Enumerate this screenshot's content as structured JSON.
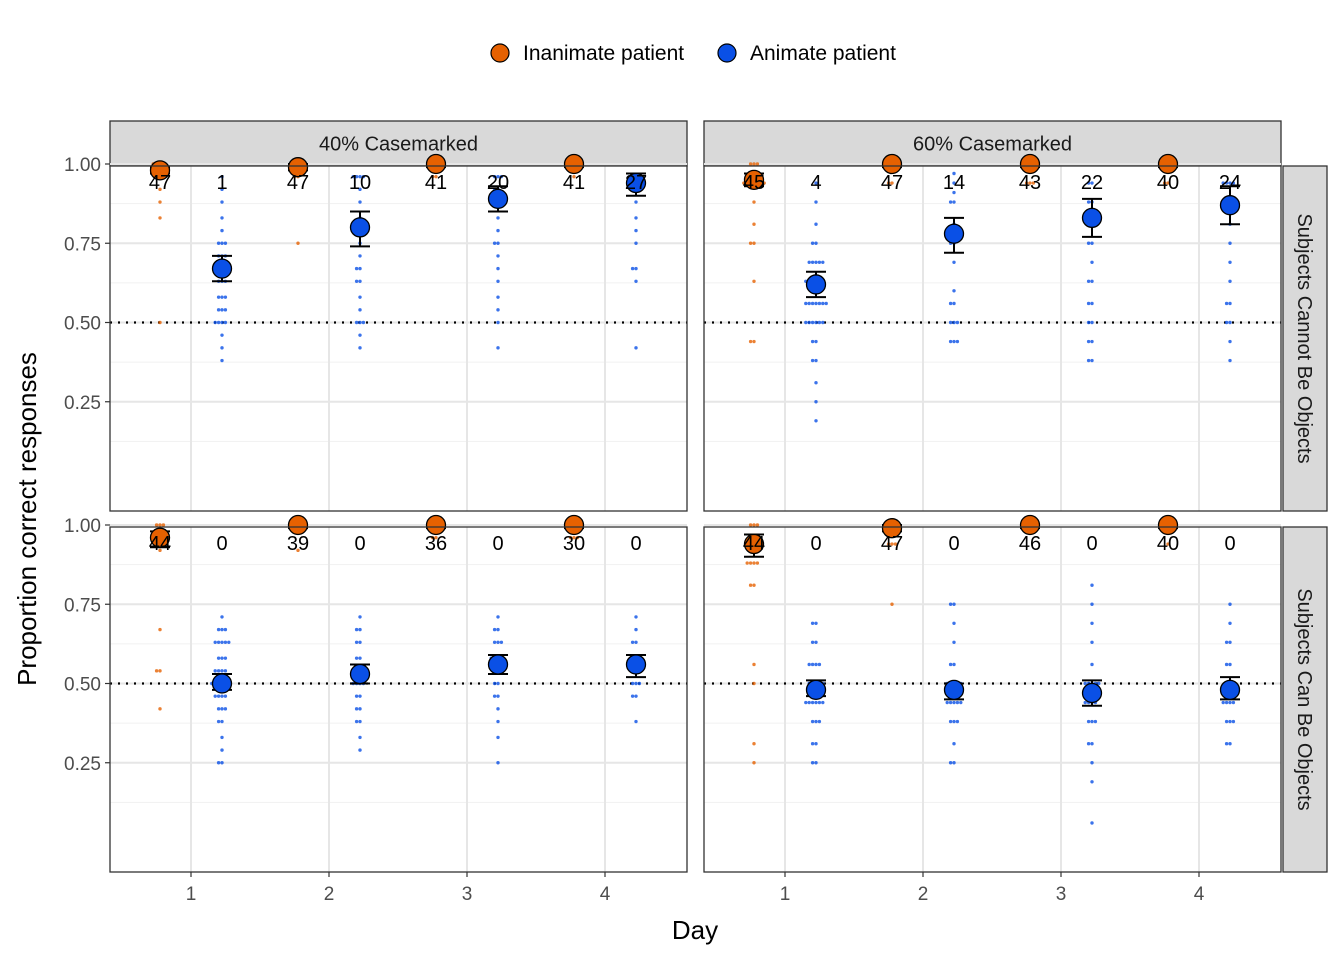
{
  "chart_data": {
    "type": "scatter",
    "title": "",
    "xlabel": "Day",
    "ylabel": "Proportion correct responses",
    "x_ticks": [
      "1",
      "2",
      "3",
      "4"
    ],
    "y_ticks": [
      "0.25",
      "0.50",
      "0.75",
      "1.00"
    ],
    "ylim": [
      0.0,
      1.12
    ],
    "reference_line": 0.5,
    "grid": true,
    "legend_position": "top",
    "legend": [
      {
        "name": "Inanimate patient",
        "color": "#E66101"
      },
      {
        "name": "Animate patient",
        "color": "#0A50E6"
      }
    ],
    "col_facets": [
      "40% Casemarked",
      "60% Casemarked"
    ],
    "row_facets": [
      "Subjects Cannot Be Objects",
      "Subjects Can Be Objects"
    ],
    "panels": [
      {
        "col": 0,
        "row": 0,
        "days": [
          {
            "day": 1,
            "inanimate": {
              "mean": 0.98,
              "lo": 0.97,
              "hi": 0.99,
              "count": "47",
              "points": [
                1.0,
                1.0,
                1.0,
                1.0,
                0.96,
                0.96,
                0.96,
                0.92,
                0.88,
                0.83,
                0.5
              ]
            },
            "animate": {
              "mean": 0.67,
              "lo": 0.63,
              "hi": 0.71,
              "count": "1",
              "points": [
                0.96,
                0.92,
                0.88,
                0.83,
                0.79,
                0.75,
                0.75,
                0.75,
                0.71,
                0.71,
                0.71,
                0.67,
                0.67,
                0.67,
                0.67,
                0.63,
                0.63,
                0.63,
                0.58,
                0.58,
                0.58,
                0.54,
                0.54,
                0.54,
                0.5,
                0.5,
                0.5,
                0.5,
                0.46,
                0.42,
                0.38
              ]
            }
          },
          {
            "day": 2,
            "inanimate": {
              "mean": 0.99,
              "lo": 0.98,
              "hi": 1.0,
              "count": "47",
              "points": [
                1.0,
                1.0,
                1.0,
                1.0,
                0.96,
                0.96,
                0.75
              ]
            },
            "animate": {
              "mean": 0.8,
              "lo": 0.74,
              "hi": 0.85,
              "count": "10",
              "points": [
                0.96,
                0.96,
                0.96,
                0.96,
                0.92,
                0.88,
                0.83,
                0.79,
                0.75,
                0.71,
                0.67,
                0.67,
                0.63,
                0.63,
                0.58,
                0.54,
                0.5,
                0.5,
                0.5,
                0.46,
                0.42
              ]
            }
          },
          {
            "day": 3,
            "inanimate": {
              "mean": 1.0,
              "lo": 0.99,
              "hi": 1.0,
              "count": "41",
              "points": [
                1.0,
                1.0,
                1.0,
                1.0,
                0.96,
                0.96
              ]
            },
            "animate": {
              "mean": 0.89,
              "lo": 0.85,
              "hi": 0.93,
              "count": "20",
              "points": [
                0.96,
                0.96,
                0.96,
                0.92,
                0.92,
                0.88,
                0.88,
                0.83,
                0.79,
                0.75,
                0.75,
                0.71,
                0.67,
                0.63,
                0.58,
                0.54,
                0.5,
                0.42
              ]
            }
          },
          {
            "day": 4,
            "inanimate": {
              "mean": 1.0,
              "lo": 0.99,
              "hi": 1.0,
              "count": "41",
              "points": [
                1.0,
                1.0,
                1.0,
                0.96
              ]
            },
            "animate": {
              "mean": 0.94,
              "lo": 0.9,
              "hi": 0.97,
              "count": "27",
              "points": [
                0.96,
                0.96,
                0.96,
                0.96,
                0.92,
                0.92,
                0.88,
                0.83,
                0.79,
                0.75,
                0.67,
                0.67,
                0.63,
                0.42
              ]
            }
          }
        ]
      },
      {
        "col": 1,
        "row": 0,
        "days": [
          {
            "day": 1,
            "inanimate": {
              "mean": 0.95,
              "lo": 0.93,
              "hi": 0.97,
              "count": "45",
              "points": [
                1.0,
                1.0,
                1.0,
                0.94,
                0.94,
                0.94,
                0.94,
                0.94,
                0.94,
                0.94,
                0.88,
                0.81,
                0.75,
                0.75,
                0.63,
                0.44,
                0.44
              ]
            }
          },
          {
            "day": 2,
            "inanimate": {
              "mean": 1.0,
              "lo": 0.99,
              "hi": 1.0,
              "count": "47",
              "points": [
                1.0,
                1.0,
                1.0,
                0.94,
                0.94
              ]
            },
            "animate": {
              "mean": 0.78,
              "lo": 0.72,
              "hi": 0.83,
              "count": "14",
              "points": [
                0.97,
                0.94,
                0.91,
                0.88,
                0.88,
                0.81,
                0.75,
                0.75,
                0.69,
                0.6,
                0.56,
                0.56,
                0.5,
                0.5,
                0.5,
                0.44,
                0.44,
                0.44
              ]
            }
          },
          {
            "day": 3,
            "inanimate": {
              "mean": 1.0,
              "lo": 0.99,
              "hi": 1.0,
              "count": "43",
              "points": [
                1.0,
                1.0,
                1.0,
                0.94,
                0.94,
                0.94
              ]
            },
            "animate": {
              "mean": 0.83,
              "lo": 0.77,
              "hi": 0.89,
              "count": "22",
              "points": [
                0.94,
                0.94,
                0.88,
                0.88,
                0.81,
                0.75,
                0.75,
                0.69,
                0.63,
                0.63,
                0.56,
                0.56,
                0.5,
                0.5,
                0.44,
                0.44,
                0.38,
                0.38
              ]
            }
          },
          {
            "day": 4,
            "inanimate": {
              "mean": 1.0,
              "lo": 0.99,
              "hi": 1.0,
              "count": "40",
              "points": [
                1.0,
                1.0,
                0.94,
                0.94
              ]
            },
            "animate": {
              "mean": 0.87,
              "lo": 0.81,
              "hi": 0.93,
              "count": "24",
              "points": [
                0.94,
                0.94,
                0.94,
                0.94,
                0.88,
                0.81,
                0.75,
                0.69,
                0.63,
                0.56,
                0.56,
                0.5,
                0.5,
                0.44,
                0.38
              ]
            }
          }
        ],
        "day1_animate": {
          "mean": 0.62,
          "lo": 0.58,
          "hi": 0.66,
          "count": "4",
          "points": [
            0.94,
            0.88,
            0.81,
            0.75,
            0.75,
            0.69,
            0.69,
            0.69,
            0.69,
            0.69,
            0.63,
            0.63,
            0.63,
            0.63,
            0.63,
            0.63,
            0.56,
            0.56,
            0.56,
            0.56,
            0.56,
            0.56,
            0.56,
            0.5,
            0.5,
            0.5,
            0.5,
            0.5,
            0.5,
            0.44,
            0.44,
            0.38,
            0.38,
            0.31,
            0.25,
            0.19
          ]
        }
      },
      {
        "col": 0,
        "row": 1,
        "days": [
          {
            "day": 1,
            "inanimate": {
              "mean": 0.96,
              "lo": 0.93,
              "hi": 0.98,
              "count": "44",
              "points": [
                1.0,
                1.0,
                1.0,
                0.96,
                0.96,
                0.96,
                0.96,
                0.96,
                0.92,
                0.67,
                0.54,
                0.54,
                0.42
              ]
            },
            "animate": {
              "mean": 0.5,
              "lo": 0.48,
              "hi": 0.53,
              "count": "0",
              "points": [
                0.71,
                0.67,
                0.67,
                0.67,
                0.63,
                0.63,
                0.63,
                0.63,
                0.63,
                0.58,
                0.58,
                0.58,
                0.54,
                0.54,
                0.54,
                0.54,
                0.5,
                0.5,
                0.5,
                0.5,
                0.5,
                0.5,
                0.46,
                0.46,
                0.46,
                0.46,
                0.42,
                0.42,
                0.42,
                0.38,
                0.38,
                0.33,
                0.29,
                0.25,
                0.25
              ]
            }
          },
          {
            "day": 2,
            "inanimate": {
              "mean": 1.0,
              "lo": 0.99,
              "hi": 1.0,
              "count": "39",
              "points": [
                1.0,
                1.0,
                1.0,
                1.0,
                0.92
              ]
            },
            "animate": {
              "mean": 0.53,
              "lo": 0.5,
              "hi": 0.56,
              "count": "0",
              "points": [
                0.71,
                0.67,
                0.67,
                0.63,
                0.63,
                0.58,
                0.58,
                0.54,
                0.54,
                0.54,
                0.5,
                0.5,
                0.5,
                0.5,
                0.46,
                0.46,
                0.42,
                0.42,
                0.38,
                0.38,
                0.33,
                0.29
              ]
            }
          },
          {
            "day": 3,
            "inanimate": {
              "mean": 1.0,
              "lo": 0.99,
              "hi": 1.0,
              "count": "36",
              "points": [
                1.0,
                1.0,
                1.0,
                0.96,
                0.96
              ]
            },
            "animate": {
              "mean": 0.56,
              "lo": 0.53,
              "hi": 0.59,
              "count": "0",
              "points": [
                0.71,
                0.67,
                0.67,
                0.63,
                0.63,
                0.63,
                0.58,
                0.58,
                0.58,
                0.58,
                0.54,
                0.54,
                0.54,
                0.5,
                0.5,
                0.46,
                0.46,
                0.42,
                0.38,
                0.33,
                0.25
              ]
            }
          },
          {
            "day": 4,
            "inanimate": {
              "mean": 1.0,
              "lo": 0.99,
              "hi": 1.0,
              "count": "30",
              "points": [
                1.0,
                1.0,
                1.0,
                0.96,
                0.96,
                0.96
              ]
            },
            "animate": {
              "mean": 0.56,
              "lo": 0.52,
              "hi": 0.59,
              "count": "0",
              "points": [
                0.71,
                0.67,
                0.63,
                0.63,
                0.58,
                0.58,
                0.54,
                0.54,
                0.5,
                0.5,
                0.5,
                0.46,
                0.46,
                0.38
              ]
            }
          }
        ]
      },
      {
        "col": 1,
        "row": 1,
        "days": [
          {
            "day": 1,
            "inanimate": {
              "mean": 0.94,
              "lo": 0.9,
              "hi": 0.97,
              "count": "44",
              "points": [
                1.0,
                1.0,
                1.0,
                0.94,
                0.94,
                0.94,
                0.88,
                0.88,
                0.88,
                0.88,
                0.81,
                0.81,
                0.56,
                0.5,
                0.31,
                0.25
              ]
            },
            "animate": {
              "mean": 0.48,
              "lo": 0.46,
              "hi": 0.51,
              "count": "0",
              "points": [
                0.69,
                0.69,
                0.63,
                0.63,
                0.56,
                0.56,
                0.56,
                0.56,
                0.5,
                0.5,
                0.5,
                0.5,
                0.5,
                0.44,
                0.44,
                0.44,
                0.44,
                0.44,
                0.44,
                0.38,
                0.38,
                0.38,
                0.31,
                0.31,
                0.25,
                0.25
              ]
            }
          },
          {
            "day": 2,
            "inanimate": {
              "mean": 0.99,
              "lo": 0.98,
              "hi": 1.0,
              "count": "47",
              "points": [
                1.0,
                1.0,
                1.0,
                0.94,
                0.94,
                0.94,
                0.75
              ]
            },
            "animate": {
              "mean": 0.48,
              "lo": 0.45,
              "hi": 0.5,
              "count": "0",
              "points": [
                0.75,
                0.75,
                0.69,
                0.63,
                0.56,
                0.56,
                0.5,
                0.5,
                0.5,
                0.5,
                0.5,
                0.44,
                0.44,
                0.44,
                0.44,
                0.44,
                0.38,
                0.38,
                0.38,
                0.31,
                0.25,
                0.25
              ]
            }
          },
          {
            "day": 3,
            "inanimate": {
              "mean": 1.0,
              "lo": 0.99,
              "hi": 1.0,
              "count": "46",
              "points": [
                1.0,
                1.0,
                1.0,
                1.0
              ]
            },
            "animate": {
              "mean": 0.47,
              "lo": 0.43,
              "hi": 0.51,
              "count": "0",
              "points": [
                0.81,
                0.75,
                0.69,
                0.63,
                0.56,
                0.5,
                0.5,
                0.5,
                0.5,
                0.5,
                0.44,
                0.44,
                0.44,
                0.44,
                0.38,
                0.38,
                0.38,
                0.31,
                0.31,
                0.25,
                0.19,
                0.06
              ]
            }
          },
          {
            "day": 4,
            "inanimate": {
              "mean": 1.0,
              "lo": 0.99,
              "hi": 1.0,
              "count": "40",
              "points": [
                1.0,
                1.0,
                1.0,
                0.94
              ]
            },
            "animate": {
              "mean": 0.48,
              "lo": 0.45,
              "hi": 0.52,
              "count": "0",
              "points": [
                0.75,
                0.69,
                0.63,
                0.63,
                0.56,
                0.56,
                0.5,
                0.5,
                0.5,
                0.44,
                0.44,
                0.44,
                0.44,
                0.38,
                0.38,
                0.38,
                0.31,
                0.31
              ]
            }
          }
        ]
      }
    ]
  }
}
